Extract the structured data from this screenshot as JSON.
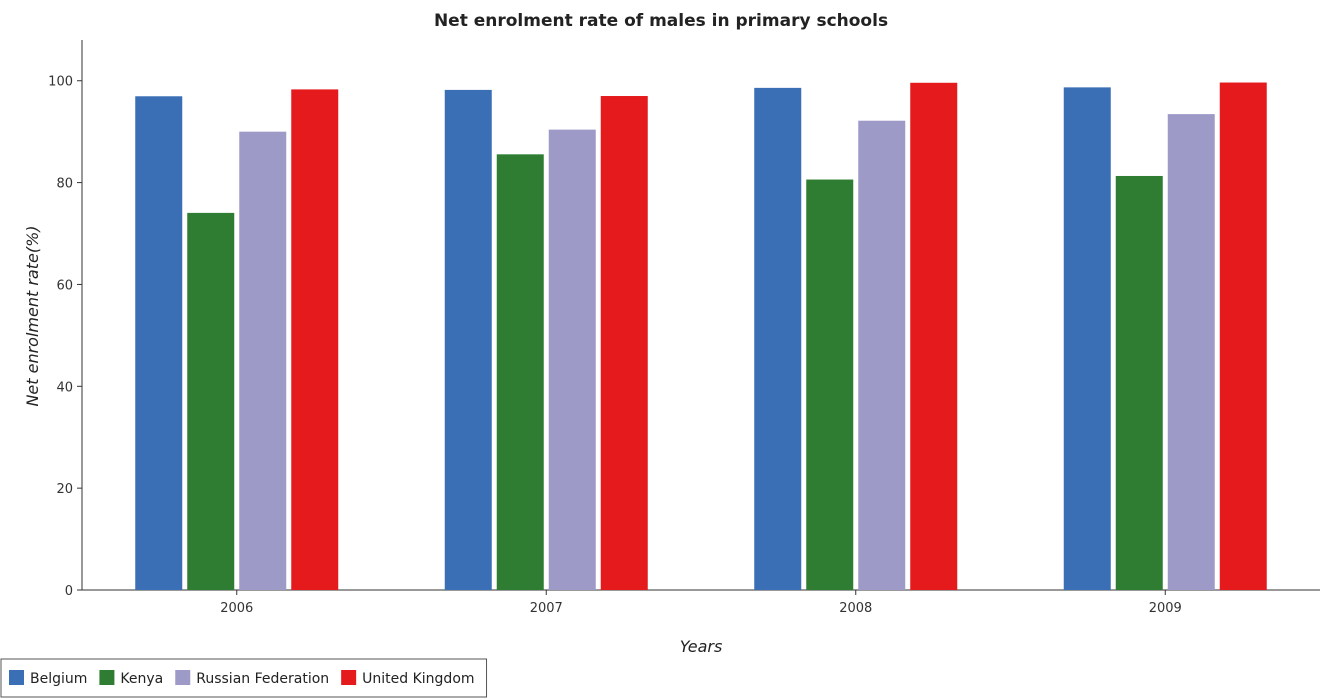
{
  "chart_data": {
    "type": "bar",
    "title": "Net enrolment rate of males in primary schools",
    "xlabel": "Years",
    "ylabel": "Net enrolment rate(%)",
    "categories": [
      "2006",
      "2007",
      "2008",
      "2009"
    ],
    "ylim": [
      0,
      108
    ],
    "yticks": [
      0,
      20,
      40,
      60,
      80,
      100
    ],
    "grid": false,
    "legend_position": "bottom-left",
    "series": [
      {
        "name": "Belgium",
        "color": "#3a6fb5",
        "values": [
          96.95,
          98.2,
          98.6,
          98.7
        ]
      },
      {
        "name": "Kenya",
        "color": "#2e7d32",
        "values": [
          74.05,
          85.55,
          80.6,
          81.3
        ]
      },
      {
        "name": "Russian Federation",
        "color": "#9e9ac8",
        "values": [
          90.0,
          90.4,
          92.15,
          93.45
        ]
      },
      {
        "name": "United Kingdom",
        "color": "#e41a1c",
        "values": [
          98.3,
          97.0,
          99.6,
          99.65
        ]
      }
    ]
  }
}
